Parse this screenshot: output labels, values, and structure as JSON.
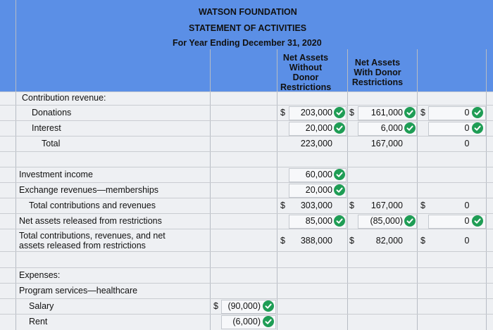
{
  "header": {
    "org": "WATSON FOUNDATION",
    "statement": "STATEMENT OF ACTIVITIES",
    "period": "For Year Ending December 31, 2020",
    "col1": "Net Assets Without Donor Restrictions",
    "col2": "Net Assets With Donor Restrictions"
  },
  "rows": {
    "contrib_rev": "Contribution revenue:",
    "donations": "Donations",
    "interest": "Interest",
    "total": "Total",
    "inv_income": "Investment income",
    "exchange": "Exchange revenues—memberships",
    "total_contrib": "Total contributions and revenues",
    "released": "Net assets released from restrictions",
    "total_all_1": "Total contributions, revenues, and net",
    "total_all_2": "assets released from restrictions",
    "expenses": "Expenses:",
    "program": "Program services—healthcare",
    "salary": "Salary",
    "rent": "Rent"
  },
  "values": {
    "donations_w": "203,000",
    "donations_wd": "161,000",
    "donations_z": "0",
    "interest_w": "20,000",
    "interest_wd": "6,000",
    "interest_z": "0",
    "total_w": "223,000",
    "total_wd": "167,000",
    "total_z": "0",
    "inv_w": "60,000",
    "exch_w": "20,000",
    "tcr_w": "303,000",
    "tcr_wd": "167,000",
    "tcr_z": "0",
    "rel_w": "85,000",
    "rel_wd": "(85,000)",
    "rel_z": "0",
    "tot_w": "388,000",
    "tot_wd": "82,000",
    "tot_z": "0",
    "salary": "(90,000)",
    "rent": "(6,000)"
  },
  "symbols": {
    "dollar": "$"
  },
  "colors": {
    "header": "#5b8fe6",
    "check": "#1f9d55"
  }
}
